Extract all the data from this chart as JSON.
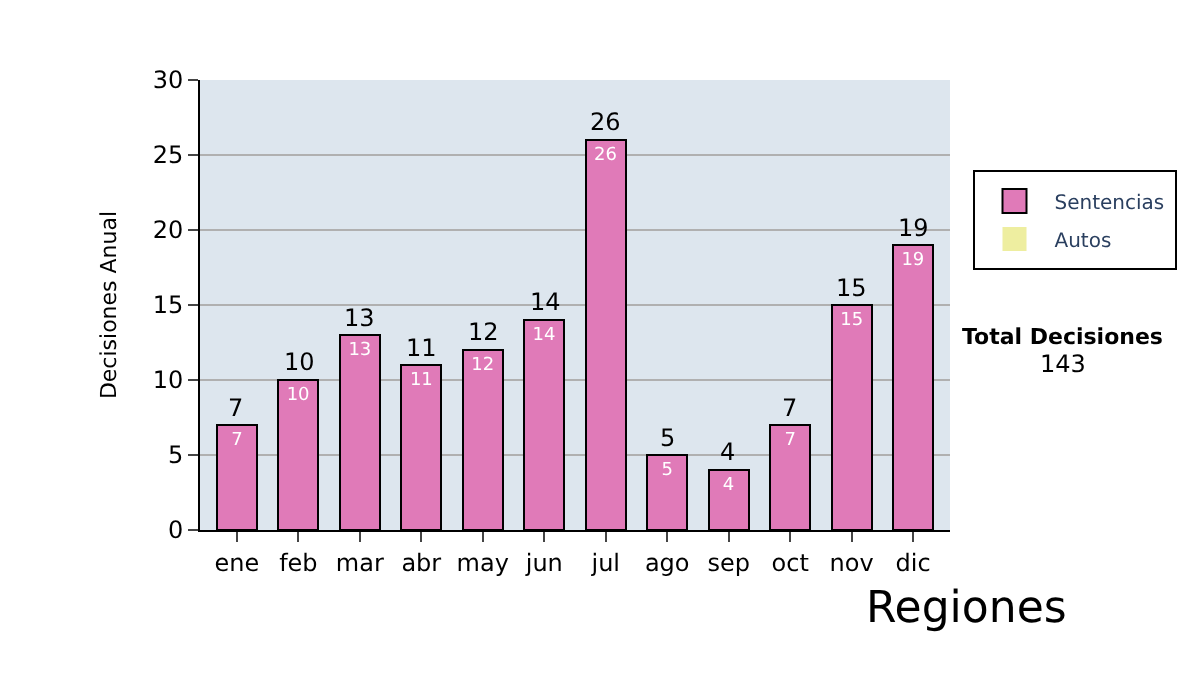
{
  "chart_data": {
    "type": "bar",
    "ylabel": "Decisiones Anual",
    "categories": [
      "ene",
      "feb",
      "mar",
      "abr",
      "may",
      "jun",
      "jul",
      "ago",
      "sep",
      "oct",
      "nov",
      "dic"
    ],
    "series": [
      {
        "name": "Sentencias",
        "color": "#e07ab8",
        "values": [
          7,
          10,
          13,
          11,
          12,
          14,
          26,
          5,
          4,
          7,
          15,
          19
        ],
        "value_labels": [
          "7",
          "10",
          "13",
          "11",
          "12",
          "14",
          "26",
          "5",
          "4",
          "7",
          "15",
          "19"
        ]
      },
      {
        "name": "Autos",
        "color": "#eeeea0",
        "values": [
          0,
          0,
          0,
          0,
          0,
          0,
          0,
          0,
          0,
          0,
          0,
          0
        ]
      }
    ],
    "stacked": true,
    "totals": [
      "7",
      "10",
      "13",
      "11",
      "12",
      "14",
      "26",
      "5",
      "4",
      "7",
      "15",
      "19"
    ],
    "ylim": [
      0,
      30
    ],
    "yticks": [
      0,
      5,
      10,
      15,
      20,
      25,
      30
    ],
    "grid": "y",
    "legend": "right",
    "annotations": [
      "Total Decisiones",
      "143",
      "Regiones"
    ]
  }
}
